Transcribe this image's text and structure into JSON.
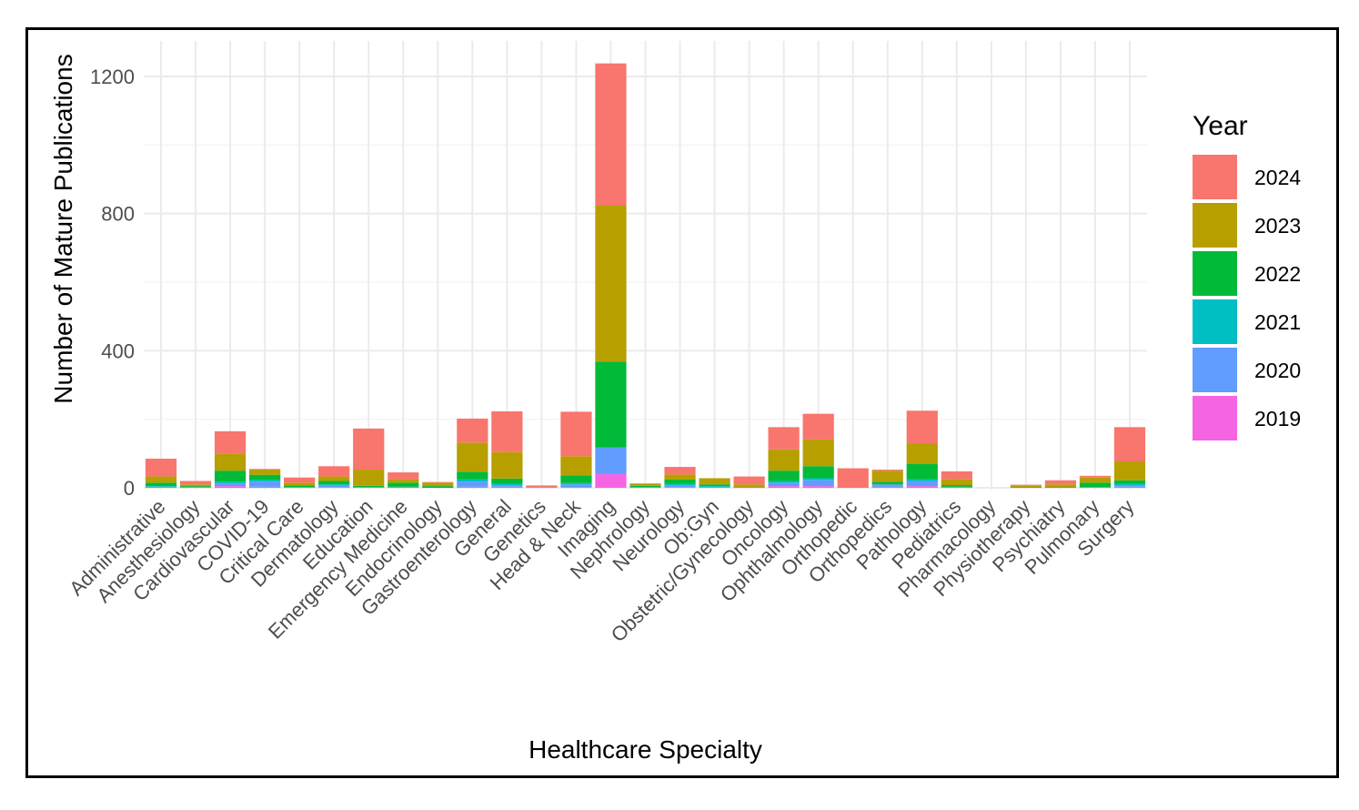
{
  "chart_data": {
    "type": "bar",
    "stacked": true,
    "xlabel": "Healthcare Specialty",
    "ylabel": "Number of Mature Publications",
    "ylim": [
      0,
      1300
    ],
    "yticks": [
      0,
      400,
      800,
      1200
    ],
    "grid": true,
    "legend": {
      "title": "Year",
      "position": "right"
    },
    "categories": [
      "Administrative",
      "Anesthesiology",
      "Cardiovascular",
      "COVID-19",
      "Critical Care",
      "Dermatology",
      "Education",
      "Emergency Medicine",
      "Endocrinology",
      "Gastroenterology",
      "General",
      "Genetics",
      "Head & Neck",
      "Imaging",
      "Nephrology",
      "Neurology",
      "Ob:Gyn",
      "Obstetric/Gynecology",
      "Oncology",
      "Ophthalmology",
      "Orthopedic",
      "Orthopedics",
      "Pathology",
      "Pediatrics",
      "Pharmacology",
      "Physiotherapy",
      "Psychiatry",
      "Pulmonary",
      "Surgery"
    ],
    "series": [
      {
        "name": "2019",
        "color": "#F564E3",
        "values": [
          0,
          0,
          5,
          3,
          0,
          2,
          0,
          0,
          0,
          3,
          3,
          0,
          2,
          40,
          0,
          2,
          0,
          0,
          5,
          5,
          0,
          3,
          5,
          0,
          0,
          0,
          0,
          0,
          3
        ]
      },
      {
        "name": "2020",
        "color": "#619CFF",
        "values": [
          3,
          2,
          8,
          15,
          2,
          6,
          2,
          3,
          0,
          15,
          5,
          0,
          8,
          78,
          2,
          5,
          2,
          0,
          10,
          18,
          0,
          7,
          15,
          3,
          0,
          0,
          0,
          2,
          5
        ]
      },
      {
        "name": "2021",
        "color": "#00BFC4",
        "values": [
          2,
          0,
          5,
          5,
          0,
          2,
          0,
          0,
          0,
          7,
          4,
          0,
          4,
          0,
          0,
          4,
          3,
          0,
          5,
          5,
          0,
          0,
          5,
          0,
          0,
          0,
          0,
          0,
          4
        ]
      },
      {
        "name": "2022",
        "color": "#00BA38",
        "values": [
          10,
          3,
          32,
          15,
          5,
          10,
          4,
          12,
          5,
          22,
          15,
          0,
          22,
          250,
          4,
          13,
          5,
          0,
          30,
          35,
          0,
          8,
          45,
          5,
          0,
          2,
          2,
          13,
          10
        ]
      },
      {
        "name": "2023",
        "color": "#B79F00",
        "values": [
          18,
          5,
          50,
          15,
          8,
          13,
          47,
          10,
          10,
          85,
          77,
          2,
          56,
          455,
          5,
          15,
          18,
          10,
          62,
          78,
          0,
          32,
          60,
          18,
          0,
          5,
          8,
          15,
          55
        ]
      },
      {
        "name": "2024",
        "color": "#F8766D",
        "values": [
          52,
          10,
          65,
          2,
          15,
          30,
          120,
          20,
          2,
          70,
          119,
          5,
          130,
          415,
          2,
          22,
          0,
          23,
          65,
          75,
          57,
          3,
          95,
          22,
          0,
          2,
          12,
          5,
          100
        ]
      }
    ]
  }
}
